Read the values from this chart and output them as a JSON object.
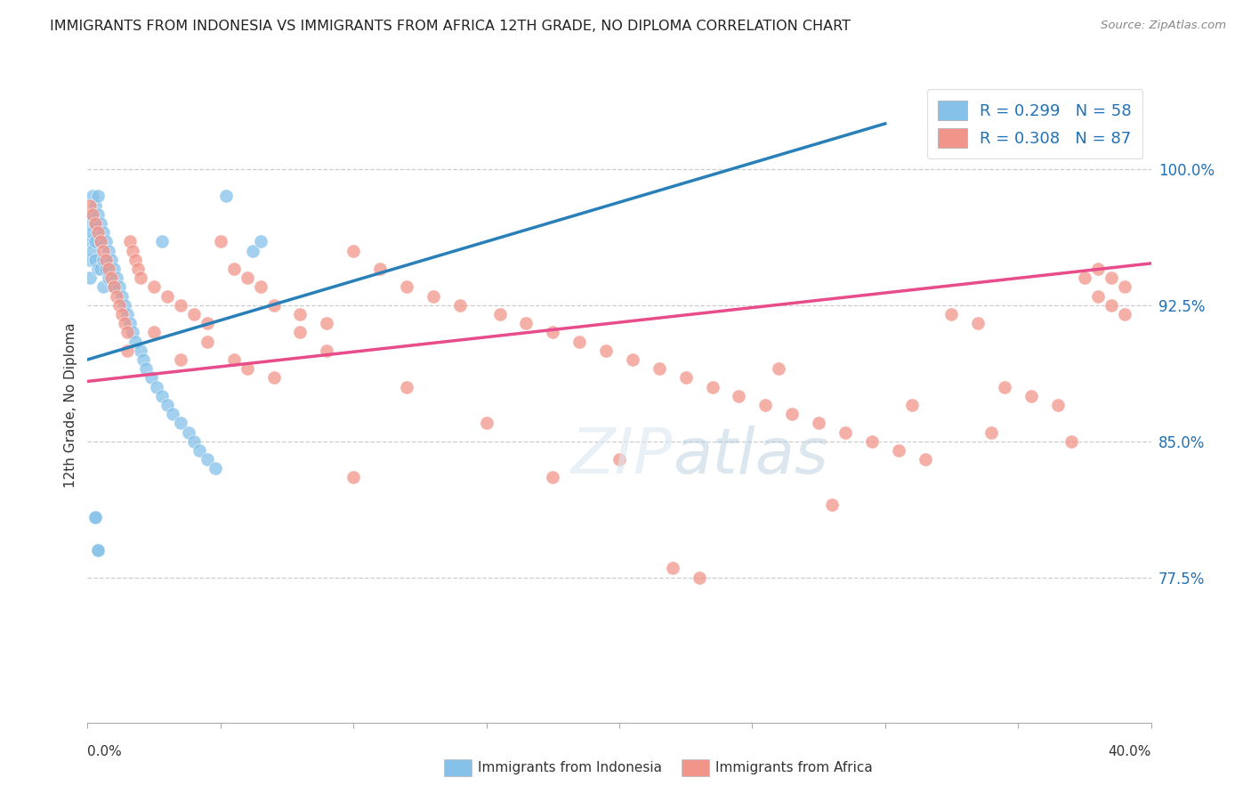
{
  "title": "IMMIGRANTS FROM INDONESIA VS IMMIGRANTS FROM AFRICA 12TH GRADE, NO DIPLOMA CORRELATION CHART",
  "source": "Source: ZipAtlas.com",
  "ylabel_label": "12th Grade, No Diploma",
  "ytick_labels": [
    "77.5%",
    "85.0%",
    "92.5%",
    "100.0%"
  ],
  "ytick_values": [
    0.775,
    0.85,
    0.925,
    1.0
  ],
  "xlim": [
    0.0,
    0.4
  ],
  "ylim": [
    0.695,
    1.045
  ],
  "legend_blue_r": "R = 0.299",
  "legend_blue_n": "N = 58",
  "legend_pink_r": "R = 0.308",
  "legend_pink_n": "N = 87",
  "legend_blue_label": "Immigrants from Indonesia",
  "legend_pink_label": "Immigrants from Africa",
  "blue_color": "#85c1e9",
  "pink_color": "#f1948a",
  "blue_line_color": "#2980b9",
  "pink_line_color": "#e74c8b",
  "blue_line": [
    [
      0.0,
      0.895
    ],
    [
      0.3,
      1.025
    ]
  ],
  "pink_line": [
    [
      0.0,
      0.883
    ],
    [
      0.4,
      0.948
    ]
  ],
  "blue_scatter_x": [
    0.001,
    0.001,
    0.001,
    0.001,
    0.002,
    0.002,
    0.002,
    0.002,
    0.003,
    0.003,
    0.003,
    0.003,
    0.004,
    0.004,
    0.004,
    0.005,
    0.005,
    0.005,
    0.006,
    0.006,
    0.006,
    0.007,
    0.007,
    0.008,
    0.008,
    0.009,
    0.01,
    0.01,
    0.011,
    0.012,
    0.013,
    0.014,
    0.015,
    0.016,
    0.017,
    0.018,
    0.02,
    0.021,
    0.022,
    0.024,
    0.026,
    0.028,
    0.03,
    0.032,
    0.035,
    0.038,
    0.04,
    0.042,
    0.045,
    0.048,
    0.003,
    0.004,
    0.062,
    0.065,
    0.028,
    0.052,
    0.003,
    0.004
  ],
  "blue_scatter_y": [
    0.97,
    0.96,
    0.95,
    0.94,
    0.985,
    0.975,
    0.965,
    0.955,
    0.98,
    0.97,
    0.96,
    0.95,
    0.985,
    0.975,
    0.945,
    0.97,
    0.96,
    0.945,
    0.965,
    0.95,
    0.935,
    0.96,
    0.945,
    0.955,
    0.94,
    0.95,
    0.945,
    0.935,
    0.94,
    0.935,
    0.93,
    0.925,
    0.92,
    0.915,
    0.91,
    0.905,
    0.9,
    0.895,
    0.89,
    0.885,
    0.88,
    0.875,
    0.87,
    0.865,
    0.86,
    0.855,
    0.85,
    0.845,
    0.84,
    0.835,
    0.808,
    0.79,
    0.955,
    0.96,
    0.96,
    0.985,
    0.808,
    0.79
  ],
  "pink_scatter_x": [
    0.001,
    0.002,
    0.003,
    0.004,
    0.005,
    0.006,
    0.007,
    0.008,
    0.009,
    0.01,
    0.011,
    0.012,
    0.013,
    0.014,
    0.015,
    0.016,
    0.017,
    0.018,
    0.019,
    0.02,
    0.025,
    0.03,
    0.035,
    0.04,
    0.045,
    0.05,
    0.055,
    0.06,
    0.065,
    0.07,
    0.08,
    0.09,
    0.1,
    0.11,
    0.12,
    0.13,
    0.14,
    0.155,
    0.165,
    0.175,
    0.185,
    0.195,
    0.205,
    0.215,
    0.225,
    0.235,
    0.245,
    0.255,
    0.265,
    0.275,
    0.285,
    0.295,
    0.305,
    0.315,
    0.325,
    0.335,
    0.345,
    0.355,
    0.365,
    0.375,
    0.38,
    0.385,
    0.39,
    0.015,
    0.025,
    0.035,
    0.045,
    0.055,
    0.06,
    0.07,
    0.08,
    0.09,
    0.15,
    0.2,
    0.26,
    0.31,
    0.34,
    0.37,
    0.22,
    0.23,
    0.175,
    0.28,
    0.1,
    0.12,
    0.38,
    0.385,
    0.39
  ],
  "pink_scatter_y": [
    0.98,
    0.975,
    0.97,
    0.965,
    0.96,
    0.955,
    0.95,
    0.945,
    0.94,
    0.935,
    0.93,
    0.925,
    0.92,
    0.915,
    0.91,
    0.96,
    0.955,
    0.95,
    0.945,
    0.94,
    0.935,
    0.93,
    0.925,
    0.92,
    0.915,
    0.96,
    0.945,
    0.94,
    0.935,
    0.925,
    0.92,
    0.915,
    0.955,
    0.945,
    0.935,
    0.93,
    0.925,
    0.92,
    0.915,
    0.91,
    0.905,
    0.9,
    0.895,
    0.89,
    0.885,
    0.88,
    0.875,
    0.87,
    0.865,
    0.86,
    0.855,
    0.85,
    0.845,
    0.84,
    0.92,
    0.915,
    0.88,
    0.875,
    0.87,
    0.94,
    0.93,
    0.925,
    0.92,
    0.9,
    0.91,
    0.895,
    0.905,
    0.895,
    0.89,
    0.885,
    0.91,
    0.9,
    0.86,
    0.84,
    0.89,
    0.87,
    0.855,
    0.85,
    0.78,
    0.775,
    0.83,
    0.815,
    0.83,
    0.88,
    0.945,
    0.94,
    0.935
  ]
}
